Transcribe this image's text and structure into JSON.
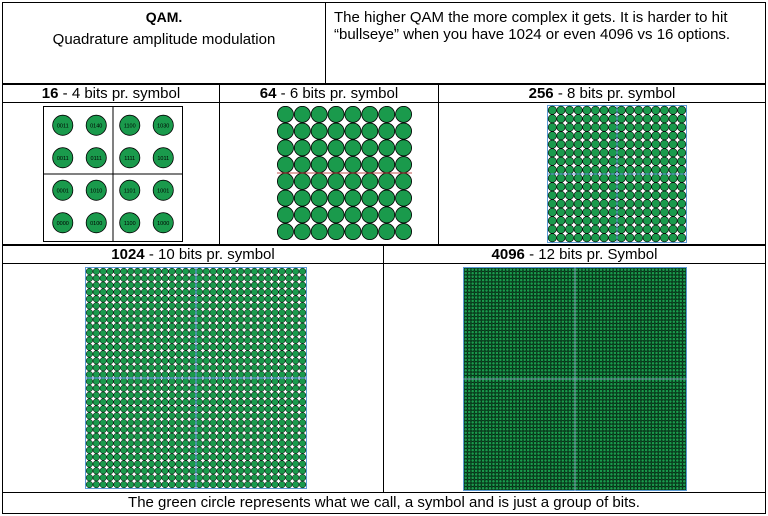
{
  "title": {
    "main": "QAM.",
    "sub": "Quadrature amplitude modulation"
  },
  "description": "The higher QAM the more complex it gets. It is harder to hit “bullseye”  when you have 1024 or even 4096 vs 16 options.",
  "panels": [
    {
      "num": "16",
      "text": " - 4 bits pr. symbol",
      "order": 16
    },
    {
      "num": "64",
      "text": " - 6 bits pr. symbol",
      "order": 64
    },
    {
      "num": "256",
      "text": " - 8 bits pr. symbol",
      "order": 256
    },
    {
      "num": "1024",
      "text": " - 10 bits pr. symbol",
      "order": 1024
    },
    {
      "num": "4096",
      "text": " - 12 bits pr. Symbol",
      "order": 4096
    }
  ],
  "qam16_labels": [
    [
      "0011",
      "0140",
      "1100",
      "1030"
    ],
    [
      "0011",
      "0111",
      "1111",
      "1011"
    ],
    [
      "0001",
      "1010",
      "1101",
      "1001"
    ],
    [
      "0000",
      "0100",
      "1100",
      "1000"
    ]
  ],
  "footer": "The green circle represents what we call, a symbol and is just a group of bits.",
  "colors": {
    "symbol_fill": "#1a9a4c",
    "symbol_stroke": "#000000",
    "grid_line": "#5b9bd5",
    "midline": "#c0504d"
  }
}
